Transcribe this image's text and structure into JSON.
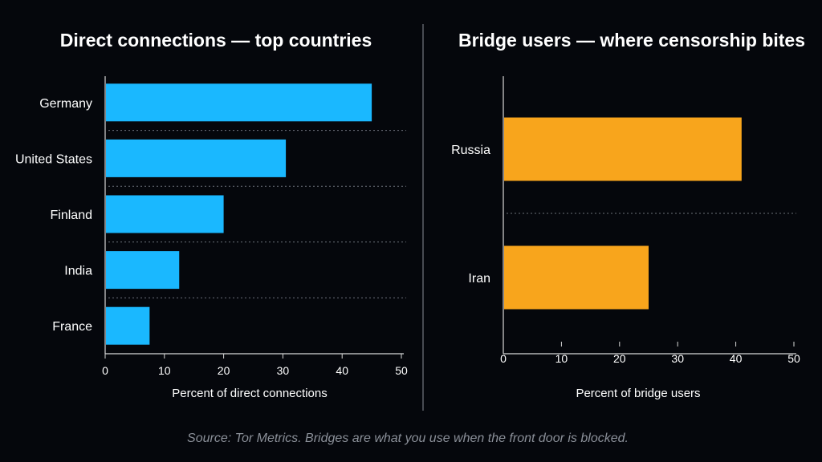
{
  "chart_data": [
    {
      "type": "bar",
      "orientation": "horizontal",
      "title": "Direct connections — top countries",
      "categories": [
        "Germany",
        "United States",
        "Finland",
        "India",
        "France"
      ],
      "values": [
        45,
        30.5,
        20,
        12.5,
        7.5
      ],
      "xlabel": "Percent of direct connections",
      "xlim": [
        0,
        50
      ],
      "xticks": [
        "0",
        "10",
        "20",
        "30",
        "40",
        "50"
      ],
      "bar_color": "#1ab8ff",
      "grid": "dotted separators between bars"
    },
    {
      "type": "bar",
      "orientation": "horizontal",
      "title": "Bridge users — where censorship bites",
      "categories": [
        "Russia",
        "Iran"
      ],
      "values": [
        41,
        25
      ],
      "xlabel": "Percent of bridge users",
      "xlim": [
        0,
        50
      ],
      "xticks": [
        "0",
        "10",
        "20",
        "30",
        "40",
        "50"
      ],
      "bar_color": "#f8a51c",
      "grid": "dotted separators between bars"
    }
  ],
  "source": "Source: Tor Metrics. Bridges are what you use when the front door is blocked.",
  "colors": {
    "background": "#05070c",
    "axis": "#d8d8d8",
    "divider": "#8a8f98",
    "source_text": "#8a8f98"
  }
}
